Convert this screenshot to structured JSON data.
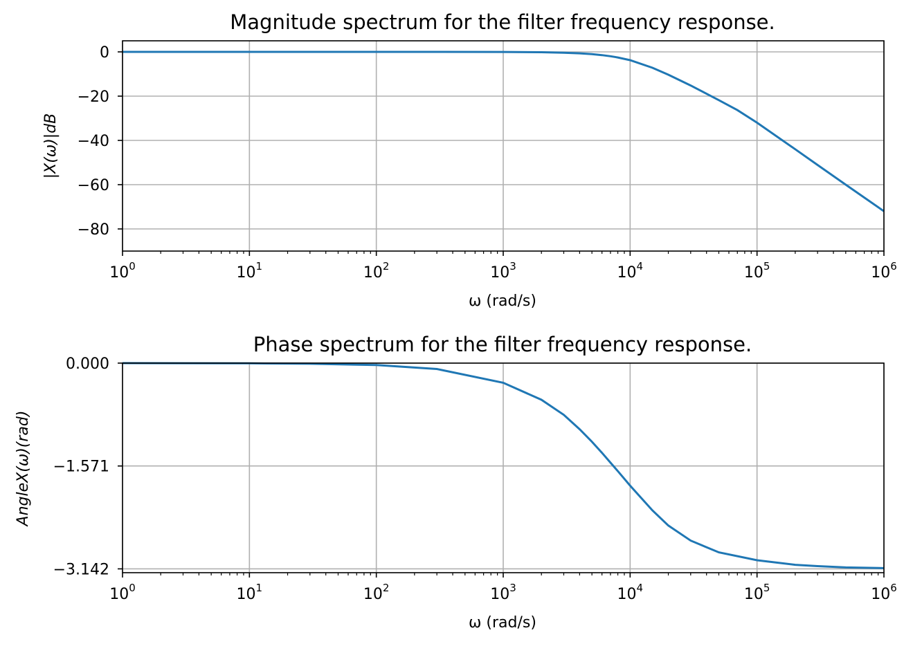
{
  "figure": {
    "background": "#ffffff",
    "line_color": "#1f77b4",
    "grid_color": "#b0b0b0"
  },
  "chart_data": [
    {
      "type": "line",
      "title": "Magnitude spectrum for the filter frequency response.",
      "xlabel": "ω (rad/s)",
      "ylabel": "|X(ω)|dB",
      "xscale": "log",
      "xlim": [
        1,
        1000000
      ],
      "ylim": [
        -90,
        5
      ],
      "grid": true,
      "xticks": [
        {
          "value": 1,
          "base": "10",
          "exp": "0"
        },
        {
          "value": 10,
          "base": "10",
          "exp": "1"
        },
        {
          "value": 100,
          "base": "10",
          "exp": "2"
        },
        {
          "value": 1000,
          "base": "10",
          "exp": "3"
        },
        {
          "value": 10000,
          "base": "10",
          "exp": "4"
        },
        {
          "value": 100000,
          "base": "10",
          "exp": "5"
        },
        {
          "value": 1000000,
          "base": "10",
          "exp": "6"
        }
      ],
      "yticks": [
        {
          "value": 0,
          "label": "0"
        },
        {
          "value": -20,
          "label": "−20"
        },
        {
          "value": -40,
          "label": "−40"
        },
        {
          "value": -60,
          "label": "−60"
        },
        {
          "value": -80,
          "label": "−80"
        }
      ],
      "series": [
        {
          "x": [
            1,
            10,
            100,
            1000,
            2000,
            3000,
            4000,
            5000,
            6000,
            7000,
            8000,
            10000,
            15000,
            20000,
            30000,
            50000,
            70000,
            100000,
            200000,
            300000,
            500000,
            700000,
            1000000
          ],
          "y": [
            0,
            0,
            0,
            -0.04,
            -0.17,
            -0.37,
            -0.67,
            -1.04,
            -1.48,
            -1.98,
            -2.53,
            -3.76,
            -7.2,
            -10.3,
            -15.2,
            -21.8,
            -26.3,
            -32.0,
            -44.0,
            -51.1,
            -60.0,
            -65.8,
            -72.0
          ]
        }
      ]
    },
    {
      "type": "line",
      "title": "Phase spectrum for the filter frequency response.",
      "xlabel": "ω (rad/s)",
      "ylabel": "AngleX(ω)(rad)",
      "xscale": "log",
      "xlim": [
        1,
        1000000
      ],
      "ylim": [
        -3.2,
        0
      ],
      "grid": true,
      "xticks": [
        {
          "value": 1,
          "base": "10",
          "exp": "0"
        },
        {
          "value": 10,
          "base": "10",
          "exp": "1"
        },
        {
          "value": 100,
          "base": "10",
          "exp": "2"
        },
        {
          "value": 1000,
          "base": "10",
          "exp": "3"
        },
        {
          "value": 10000,
          "base": "10",
          "exp": "4"
        },
        {
          "value": 100000,
          "base": "10",
          "exp": "5"
        },
        {
          "value": 1000000,
          "base": "10",
          "exp": "6"
        }
      ],
      "yticks": [
        {
          "value": 0,
          "label": "0.000"
        },
        {
          "value": -1.5708,
          "label": "−1.571"
        },
        {
          "value": -3.1416,
          "label": "−3.142"
        }
      ],
      "series": [
        {
          "x": [
            1,
            10,
            30,
            100,
            300,
            1000,
            2000,
            3000,
            4000,
            5000,
            6000,
            7000,
            8000,
            10000,
            15000,
            20000,
            30000,
            50000,
            100000,
            200000,
            300000,
            500000,
            1000000
          ],
          "y": [
            -0.0003,
            -0.003,
            -0.01,
            -0.03,
            -0.09,
            -0.3,
            -0.56,
            -0.79,
            -1.01,
            -1.2,
            -1.37,
            -1.52,
            -1.65,
            -1.87,
            -2.25,
            -2.48,
            -2.71,
            -2.89,
            -3.01,
            -3.08,
            -3.1,
            -3.12,
            -3.13
          ]
        }
      ]
    }
  ]
}
